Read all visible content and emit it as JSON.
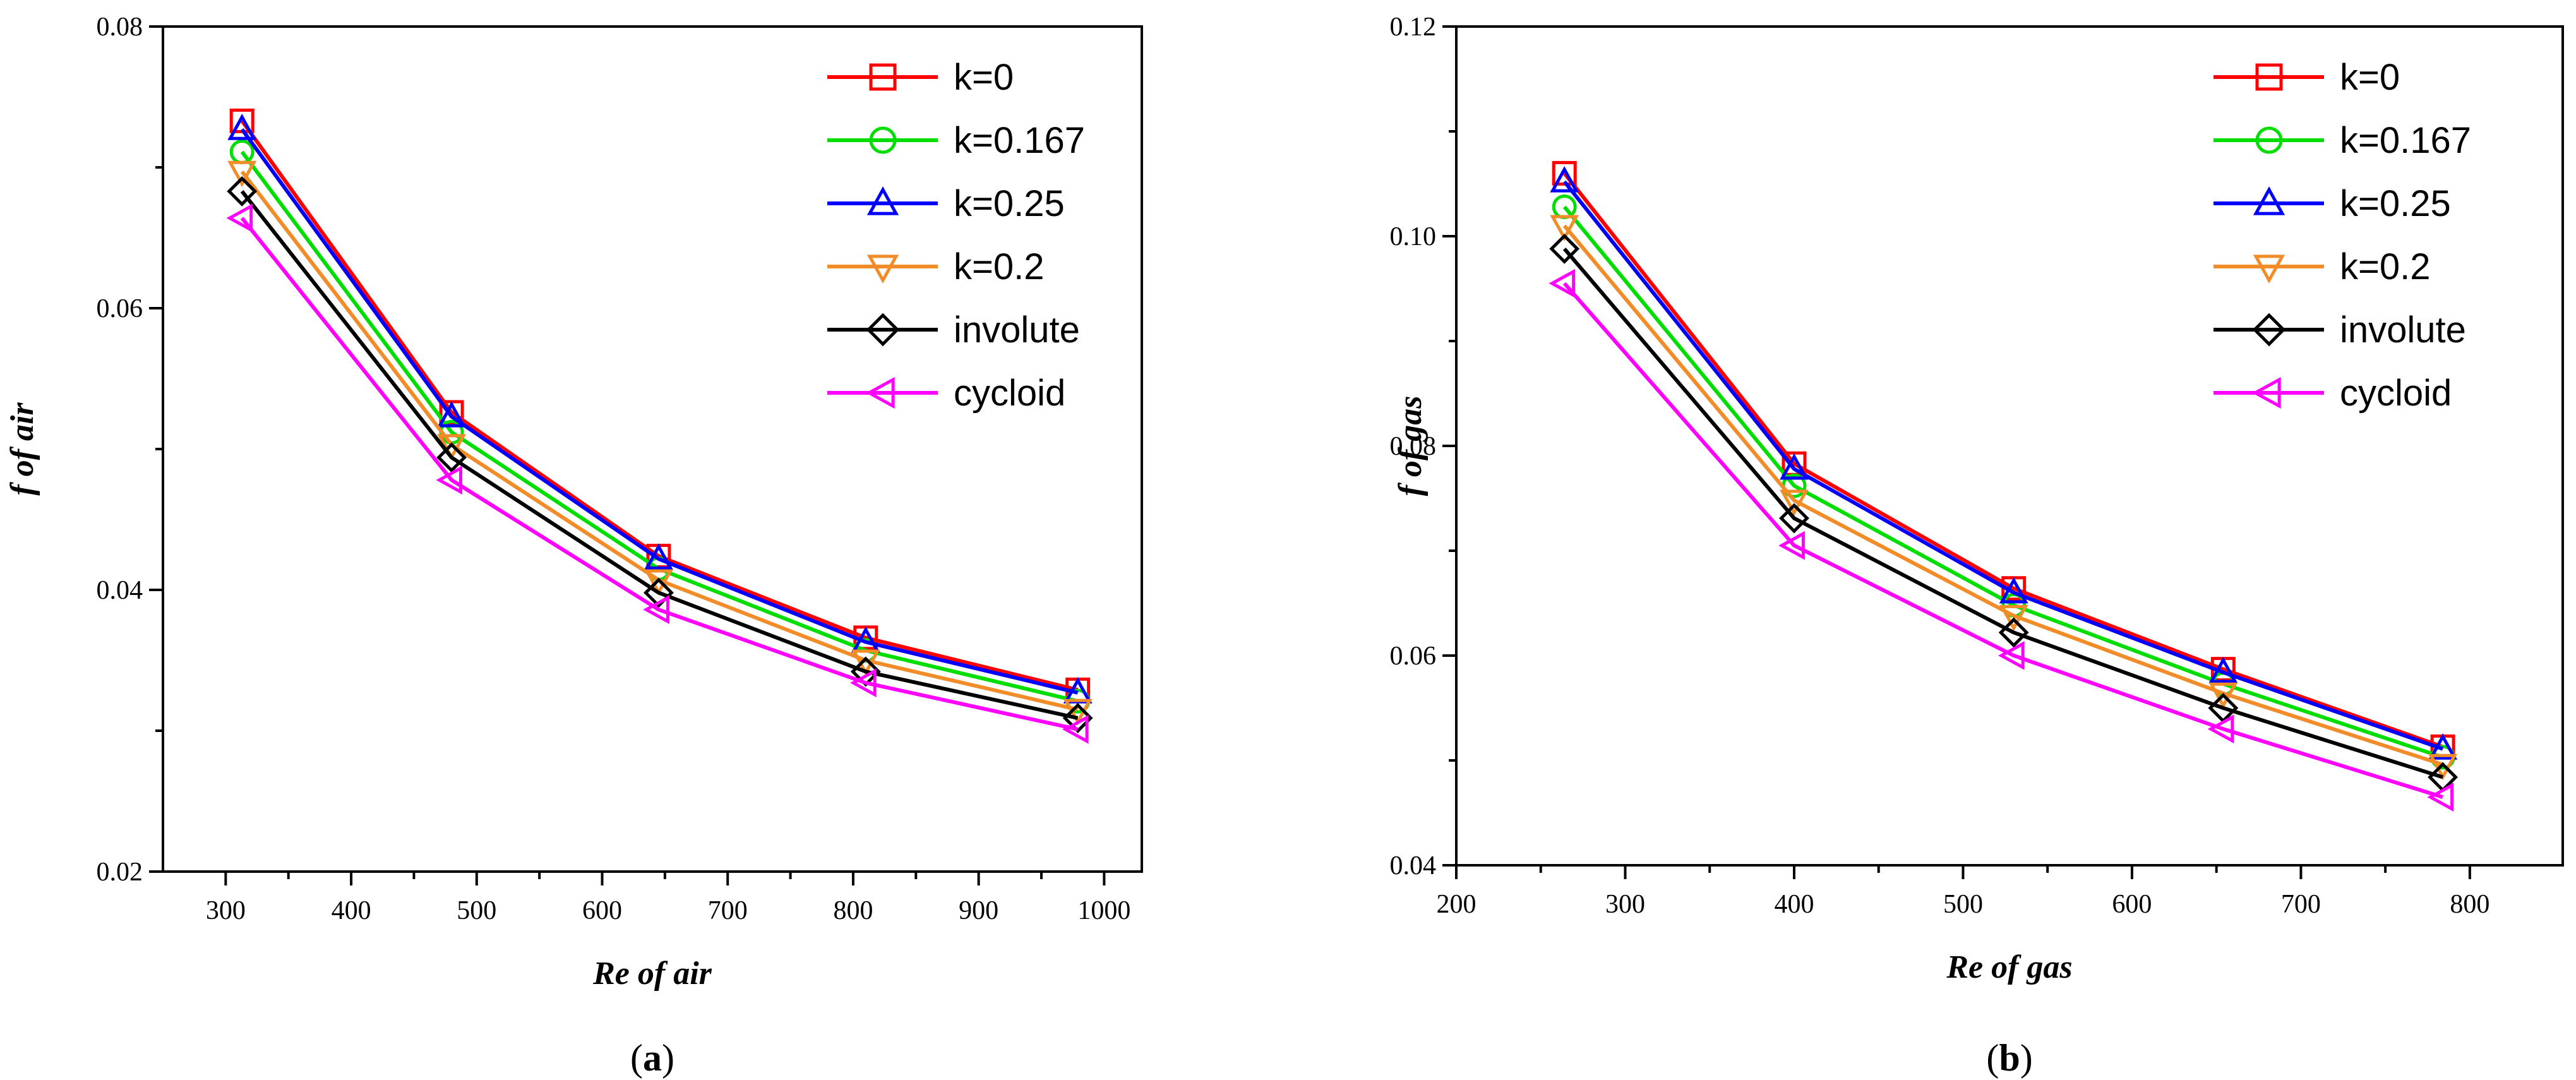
{
  "chart_data": [
    {
      "type": "line",
      "caption": "a",
      "xlabel": "Re of air",
      "ylabel": "f of air",
      "xlim": [
        250,
        1030
      ],
      "ylim": [
        0.02,
        0.08
      ],
      "xticks": [
        300,
        400,
        500,
        600,
        700,
        800,
        900,
        1000
      ],
      "yticks": [
        0.02,
        0.04,
        0.06,
        0.08
      ],
      "yminor": [
        0.03,
        0.05,
        0.07
      ],
      "legend": "top-right",
      "grid": false,
      "x": [
        313,
        480,
        645,
        810,
        979
      ],
      "series": [
        {
          "name": "k=0",
          "color": "#ff0000",
          "marker": "square",
          "values": [
            0.0733,
            0.0526,
            0.0424,
            0.0366,
            0.0329
          ]
        },
        {
          "name": "k=0.167",
          "color": "#00dd00",
          "marker": "circle",
          "values": [
            0.0711,
            0.0512,
            0.0415,
            0.0357,
            0.0321
          ]
        },
        {
          "name": "k=0.25",
          "color": "#0000ff",
          "marker": "triangle-up",
          "values": [
            0.0727,
            0.0523,
            0.0422,
            0.0363,
            0.0327
          ]
        },
        {
          "name": "k=0.2",
          "color": "#f28c28",
          "marker": "triangle-down",
          "values": [
            0.0697,
            0.0503,
            0.0407,
            0.035,
            0.0315
          ]
        },
        {
          "name": "involute",
          "color": "#000000",
          "marker": "diamond",
          "values": [
            0.0683,
            0.0494,
            0.0398,
            0.0342,
            0.0309
          ]
        },
        {
          "name": "cycloid",
          "color": "#ff00ff",
          "marker": "triangle-left",
          "values": [
            0.0664,
            0.0478,
            0.0386,
            0.0334,
            0.0301
          ]
        }
      ]
    },
    {
      "type": "line",
      "caption": "b",
      "xlabel": "Re of gas",
      "ylabel": "f of gas",
      "xlim": [
        200,
        855
      ],
      "ylim": [
        0.04,
        0.12
      ],
      "xticks": [
        200,
        300,
        400,
        500,
        600,
        700,
        800
      ],
      "yticks": [
        0.04,
        0.06,
        0.08,
        0.1,
        0.12
      ],
      "ytick_labels": [
        "0.04",
        "0.06",
        "0.08",
        "0.10",
        "0.12"
      ],
      "yminor": [
        0.05,
        0.07,
        0.09,
        0.11
      ],
      "legend": "top-right",
      "grid": false,
      "x": [
        264,
        400,
        530,
        654,
        784
      ],
      "series": [
        {
          "name": "k=0",
          "color": "#ff0000",
          "marker": "square",
          "values": [
            0.106,
            0.0783,
            0.0664,
            0.0587,
            0.0513
          ]
        },
        {
          "name": "k=0.167",
          "color": "#00dd00",
          "marker": "circle",
          "values": [
            0.1028,
            0.0762,
            0.0648,
            0.0573,
            0.0503
          ]
        },
        {
          "name": "k=0.25",
          "color": "#0000ff",
          "marker": "triangle-up",
          "values": [
            0.1052,
            0.0778,
            0.066,
            0.0584,
            0.0511
          ]
        },
        {
          "name": "k=0.2",
          "color": "#f28c28",
          "marker": "triangle-down",
          "values": [
            0.101,
            0.0748,
            0.0638,
            0.0564,
            0.0496
          ]
        },
        {
          "name": "involute",
          "color": "#000000",
          "marker": "diamond",
          "values": [
            0.0988,
            0.0731,
            0.0622,
            0.055,
            0.0484
          ]
        },
        {
          "name": "cycloid",
          "color": "#ff00ff",
          "marker": "triangle-left",
          "values": [
            0.0955,
            0.0705,
            0.06,
            0.053,
            0.0465
          ]
        }
      ]
    }
  ]
}
